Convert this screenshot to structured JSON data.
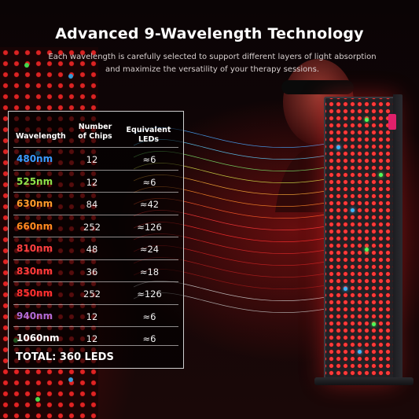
{
  "header": {
    "title": "Advanced 9-Wavelength Technology",
    "subtitle_line1": "Each wavelength is carefully selected to support different layers of light absorption",
    "subtitle_line2": "and maximize the versatility of your therapy sessions."
  },
  "table": {
    "headers": {
      "wavelength": "Wavelength",
      "chips_line1": "Number",
      "chips_line2": "of Chips",
      "equivalent_line1": "Equivalent",
      "equivalent_line2": "LEDs"
    },
    "rows": [
      {
        "wavelength": "480nm",
        "chips": "12",
        "equivalent": "≈6",
        "color": "#3b9cff"
      },
      {
        "wavelength": "525nm",
        "chips": "12",
        "equivalent": "≈6",
        "color": "#8fe34a"
      },
      {
        "wavelength": "630nm",
        "chips": "84",
        "equivalent": "≈42",
        "color": "#ff9b2a"
      },
      {
        "wavelength": "660nm",
        "chips": "252",
        "equivalent": "≈126",
        "color": "#ff8a1f"
      },
      {
        "wavelength": "810nm",
        "chips": "48",
        "equivalent": "≈24",
        "color": "#ff4040"
      },
      {
        "wavelength": "830nm",
        "chips": "36",
        "equivalent": "≈18",
        "color": "#ff3a3a"
      },
      {
        "wavelength": "850nm",
        "chips": "252",
        "equivalent": "≈126",
        "color": "#ff3030"
      },
      {
        "wavelength": "940nm",
        "chips": "12",
        "equivalent": "≈6",
        "color": "#b06bd6"
      },
      {
        "wavelength": "1060nm",
        "chips": "12",
        "equivalent": "≈6",
        "color": "#ffffff"
      }
    ],
    "total": "TOTAL: 360 LEDS"
  },
  "icons": {
    "device": "led-therapy-panel-icon",
    "person": "person-silhouette-icon",
    "waves": "light-wave-icon"
  }
}
